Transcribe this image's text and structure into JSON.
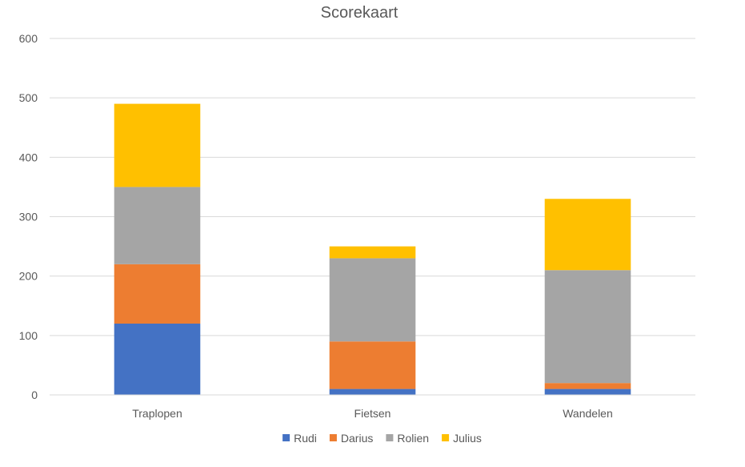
{
  "chart_data": {
    "type": "bar",
    "stacked": true,
    "title": "Scorekaart",
    "xlabel": "",
    "ylabel": "",
    "categories": [
      "Traplopen",
      "Fietsen",
      "Wandelen"
    ],
    "ylim": [
      0,
      600
    ],
    "yticks": [
      "0",
      "100",
      "200",
      "300",
      "400",
      "500",
      "600"
    ],
    "grid": true,
    "legend_position": "bottom",
    "series": [
      {
        "name": "Rudi",
        "values": [
          120,
          10,
          10
        ],
        "color": "#4472C4"
      },
      {
        "name": "Darius",
        "values": [
          100,
          80,
          10
        ],
        "color": "#ED7D31"
      },
      {
        "name": "Rolien",
        "values": [
          130,
          140,
          190
        ],
        "color": "#A5A5A5"
      },
      {
        "name": "Julius",
        "values": [
          140,
          20,
          120
        ],
        "color": "#FFC000"
      }
    ]
  }
}
